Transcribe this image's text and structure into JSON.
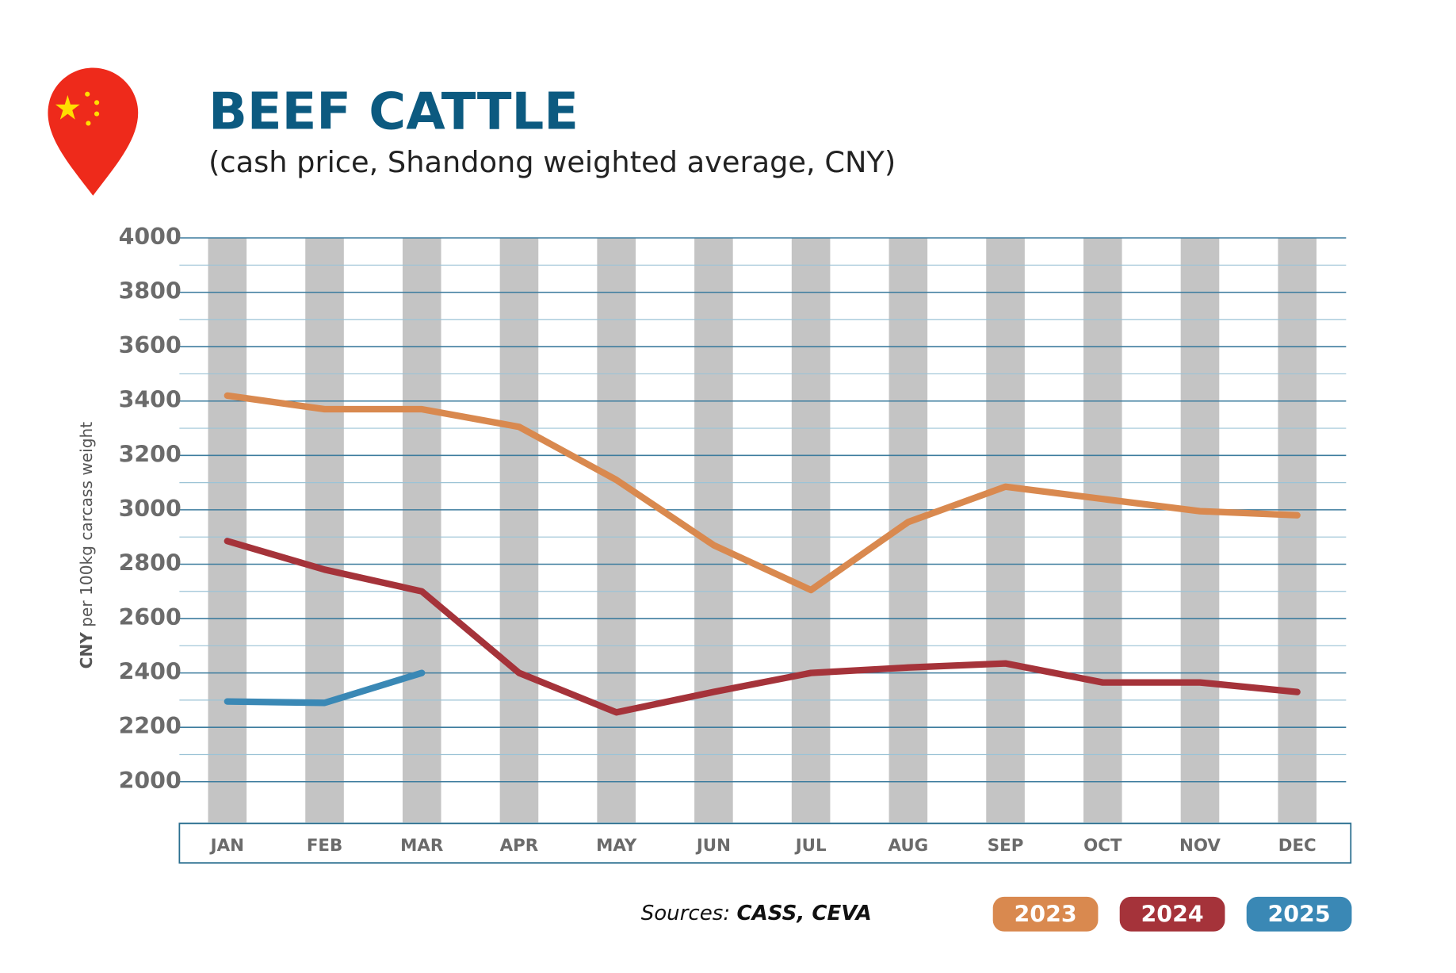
{
  "chart_data": {
    "type": "line",
    "title": "BEEF CATTLE",
    "subtitle": "(cash price, Shandong weighted average, CNY)",
    "y_label_unit": "CNY",
    "y_label": "per 100kg carcass weight",
    "source_label": "Sources:",
    "source_names": "CASS, CEVA",
    "categories": [
      "JAN",
      "FEB",
      "MAR",
      "APR",
      "MAY",
      "JUN",
      "JUL",
      "AUG",
      "SEP",
      "OCT",
      "NOV",
      "DEC"
    ],
    "series": [
      {
        "name": "2023",
        "color": "#d9894f",
        "values": [
          3420,
          3370,
          3370,
          3305,
          3110,
          2870,
          2705,
          2955,
          3085,
          3040,
          2995,
          2980
        ]
      },
      {
        "name": "2024",
        "color": "#a5333a",
        "values": [
          2885,
          2780,
          2700,
          2400,
          2255,
          2330,
          2400,
          2420,
          2435,
          2365,
          2365,
          2330
        ]
      },
      {
        "name": "2025",
        "color": "#3a88b5",
        "values": [
          2295,
          2290,
          2400,
          null,
          null,
          null,
          null,
          null,
          null,
          null,
          null,
          null
        ]
      }
    ],
    "ylim": [
      1850,
      4000
    ],
    "yticks": [
      2000,
      2200,
      2400,
      2600,
      2800,
      3000,
      3200,
      3400,
      3600,
      3800,
      4000
    ],
    "grid": true
  }
}
